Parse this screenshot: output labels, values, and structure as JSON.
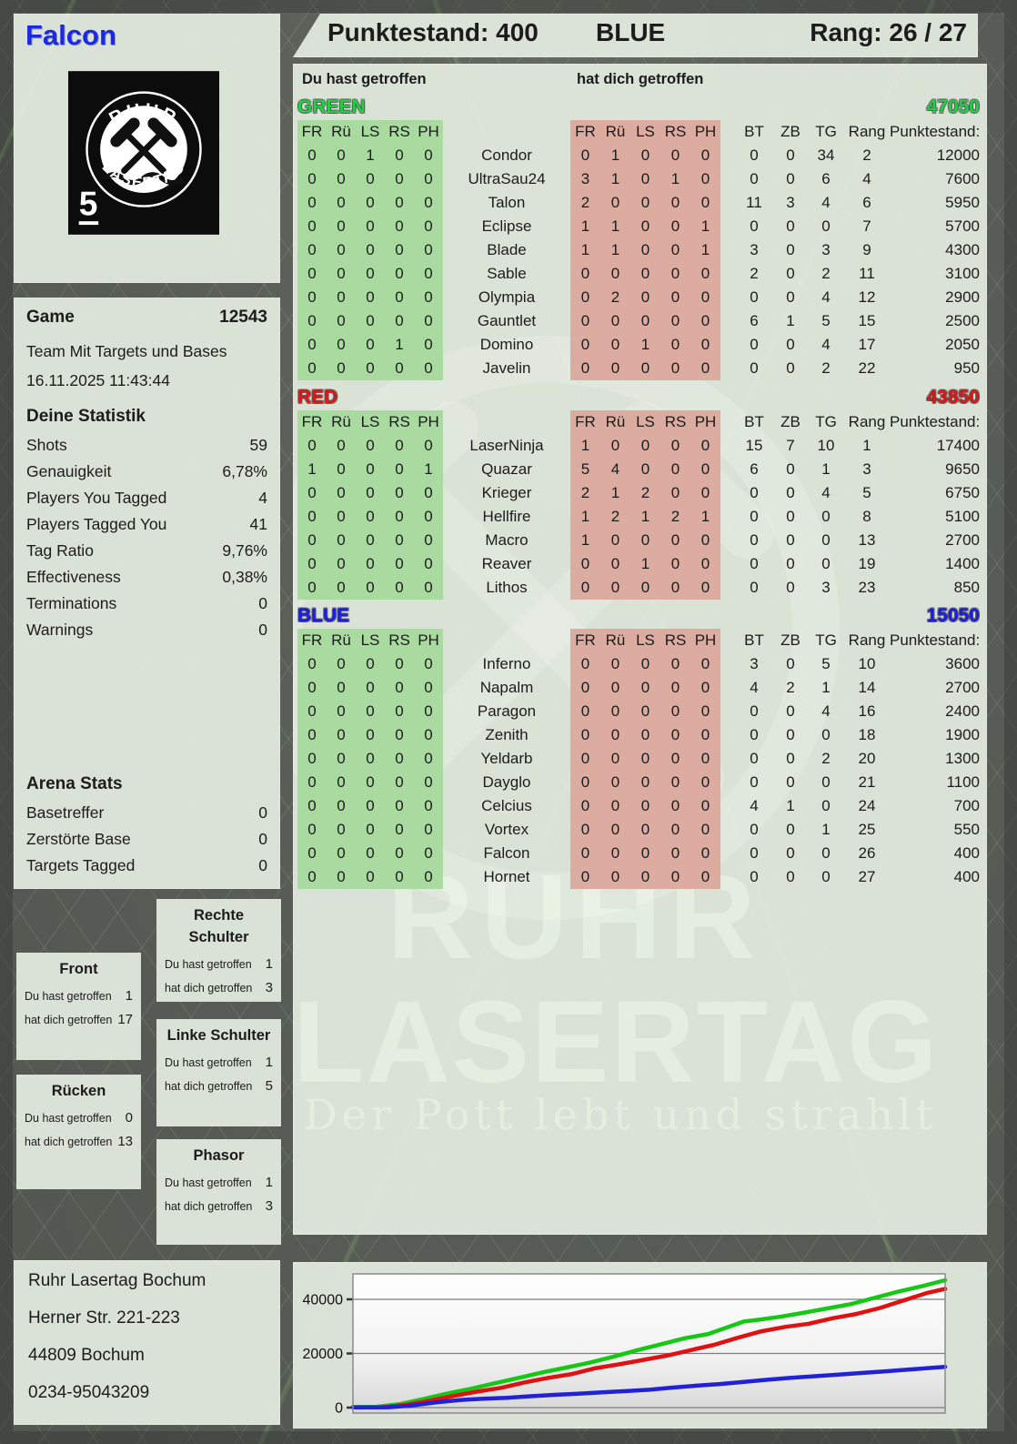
{
  "header": {
    "score_label": "Punktestand: 400",
    "team": "BLUE",
    "rank_label": "Rang: 26 / 27"
  },
  "player": {
    "name": "Falcon"
  },
  "logo": {
    "arc_top": "RUHR",
    "arc_bottom": "LASERTAG",
    "badge": "5"
  },
  "game": {
    "label": "Game",
    "id": "12543",
    "mode": "Team Mit Targets und Bases",
    "datetime": "16.11.2025 11:43:44"
  },
  "stats": {
    "title": "Deine Statistik",
    "rows": [
      {
        "label": "Shots",
        "value": "59"
      },
      {
        "label": "Genauigkeit",
        "value": "6,78%"
      },
      {
        "label": "Players You Tagged",
        "value": "4"
      },
      {
        "label": "Players Tagged You",
        "value": "41"
      },
      {
        "label": "Tag Ratio",
        "value": "9,76%"
      },
      {
        "label": "Effectiveness",
        "value": "0,38%"
      },
      {
        "label": "Terminations",
        "value": "0"
      },
      {
        "label": "Warnings",
        "value": "0"
      }
    ]
  },
  "arena": {
    "title": "Arena Stats",
    "rows": [
      {
        "label": "Basetreffer",
        "value": "0"
      },
      {
        "label": "Zerstörte Base",
        "value": "0"
      },
      {
        "label": "Targets Tagged",
        "value": "0"
      }
    ]
  },
  "hitboxes": {
    "rechte": {
      "title": "Rechte Schulter",
      "hit_label": "Du hast getroffen",
      "hit": "1",
      "got_label": "hat dich getroffen",
      "got": "3"
    },
    "front": {
      "title": "Front",
      "hit_label": "Du hast getroffen",
      "hit": "1",
      "got_label": "hat dich getroffen",
      "got": "17"
    },
    "linke": {
      "title": "Linke Schulter",
      "hit_label": "Du hast getroffen",
      "hit": "1",
      "got_label": "hat dich getroffen",
      "got": "5"
    },
    "ruecken": {
      "title": "Rücken",
      "hit_label": "Du hast getroffen",
      "hit": "0",
      "got_label": "hat dich getroffen",
      "got": "13"
    },
    "phasor": {
      "title": "Phasor",
      "hit_label": "Du hast getroffen",
      "hit": "1",
      "got_label": "hat dich getroffen",
      "got": "3"
    }
  },
  "columns": {
    "left_label": "Du hast getroffen",
    "right_label": "hat dich getroffen",
    "hit_cols": [
      "FR",
      "Rü",
      "LS",
      "RS",
      "PH"
    ],
    "stat_cols": [
      "BT",
      "ZB",
      "TG",
      "Rang",
      "Punktestand:"
    ]
  },
  "teams": [
    {
      "name": "GREEN",
      "color": "#1fd143",
      "total": "47050",
      "players": [
        {
          "name": "Condor",
          "you": [
            0,
            0,
            1,
            0,
            0
          ],
          "them": [
            0,
            1,
            0,
            0,
            0
          ],
          "bt": 0,
          "zb": 0,
          "tg": 34,
          "rang": 2,
          "score": "12000"
        },
        {
          "name": "UltraSau24",
          "you": [
            0,
            0,
            0,
            0,
            0
          ],
          "them": [
            3,
            1,
            0,
            1,
            0
          ],
          "bt": 0,
          "zb": 0,
          "tg": 6,
          "rang": 4,
          "score": "7600"
        },
        {
          "name": "Talon",
          "you": [
            0,
            0,
            0,
            0,
            0
          ],
          "them": [
            2,
            0,
            0,
            0,
            0
          ],
          "bt": 11,
          "zb": 3,
          "tg": 4,
          "rang": 6,
          "score": "5950"
        },
        {
          "name": "Eclipse",
          "you": [
            0,
            0,
            0,
            0,
            0
          ],
          "them": [
            1,
            1,
            0,
            0,
            1
          ],
          "bt": 0,
          "zb": 0,
          "tg": 0,
          "rang": 7,
          "score": "5700"
        },
        {
          "name": "Blade",
          "you": [
            0,
            0,
            0,
            0,
            0
          ],
          "them": [
            1,
            1,
            0,
            0,
            1
          ],
          "bt": 3,
          "zb": 0,
          "tg": 3,
          "rang": 9,
          "score": "4300"
        },
        {
          "name": "Sable",
          "you": [
            0,
            0,
            0,
            0,
            0
          ],
          "them": [
            0,
            0,
            0,
            0,
            0
          ],
          "bt": 2,
          "zb": 0,
          "tg": 2,
          "rang": 11,
          "score": "3100"
        },
        {
          "name": "Olympia",
          "you": [
            0,
            0,
            0,
            0,
            0
          ],
          "them": [
            0,
            2,
            0,
            0,
            0
          ],
          "bt": 0,
          "zb": 0,
          "tg": 4,
          "rang": 12,
          "score": "2900"
        },
        {
          "name": "Gauntlet",
          "you": [
            0,
            0,
            0,
            0,
            0
          ],
          "them": [
            0,
            0,
            0,
            0,
            0
          ],
          "bt": 6,
          "zb": 1,
          "tg": 5,
          "rang": 15,
          "score": "2500"
        },
        {
          "name": "Domino",
          "you": [
            0,
            0,
            0,
            1,
            0
          ],
          "them": [
            0,
            0,
            1,
            0,
            0
          ],
          "bt": 0,
          "zb": 0,
          "tg": 4,
          "rang": 17,
          "score": "2050"
        },
        {
          "name": "Javelin",
          "you": [
            0,
            0,
            0,
            0,
            0
          ],
          "them": [
            0,
            0,
            0,
            0,
            0
          ],
          "bt": 0,
          "zb": 0,
          "tg": 2,
          "rang": 22,
          "score": "950"
        }
      ]
    },
    {
      "name": "RED",
      "color": "#e01616",
      "total": "43850",
      "players": [
        {
          "name": "LaserNinja",
          "you": [
            0,
            0,
            0,
            0,
            0
          ],
          "them": [
            1,
            0,
            0,
            0,
            0
          ],
          "bt": 15,
          "zb": 7,
          "tg": 10,
          "rang": 1,
          "score": "17400"
        },
        {
          "name": "Quazar",
          "you": [
            1,
            0,
            0,
            0,
            1
          ],
          "them": [
            5,
            4,
            0,
            0,
            0
          ],
          "bt": 6,
          "zb": 0,
          "tg": 1,
          "rang": 3,
          "score": "9650"
        },
        {
          "name": "Krieger",
          "you": [
            0,
            0,
            0,
            0,
            0
          ],
          "them": [
            2,
            1,
            2,
            0,
            0
          ],
          "bt": 0,
          "zb": 0,
          "tg": 4,
          "rang": 5,
          "score": "6750"
        },
        {
          "name": "Hellfire",
          "you": [
            0,
            0,
            0,
            0,
            0
          ],
          "them": [
            1,
            2,
            1,
            2,
            1
          ],
          "bt": 0,
          "zb": 0,
          "tg": 0,
          "rang": 8,
          "score": "5100"
        },
        {
          "name": "Macro",
          "you": [
            0,
            0,
            0,
            0,
            0
          ],
          "them": [
            1,
            0,
            0,
            0,
            0
          ],
          "bt": 0,
          "zb": 0,
          "tg": 0,
          "rang": 13,
          "score": "2700"
        },
        {
          "name": "Reaver",
          "you": [
            0,
            0,
            0,
            0,
            0
          ],
          "them": [
            0,
            0,
            1,
            0,
            0
          ],
          "bt": 0,
          "zb": 0,
          "tg": 0,
          "rang": 19,
          "score": "1400"
        },
        {
          "name": "Lithos",
          "you": [
            0,
            0,
            0,
            0,
            0
          ],
          "them": [
            0,
            0,
            0,
            0,
            0
          ],
          "bt": 0,
          "zb": 0,
          "tg": 3,
          "rang": 23,
          "score": "850"
        }
      ]
    },
    {
      "name": "BLUE",
      "color": "#1c1ce8",
      "total": "15050",
      "players": [
        {
          "name": "Inferno",
          "you": [
            0,
            0,
            0,
            0,
            0
          ],
          "them": [
            0,
            0,
            0,
            0,
            0
          ],
          "bt": 3,
          "zb": 0,
          "tg": 5,
          "rang": 10,
          "score": "3600"
        },
        {
          "name": "Napalm",
          "you": [
            0,
            0,
            0,
            0,
            0
          ],
          "them": [
            0,
            0,
            0,
            0,
            0
          ],
          "bt": 4,
          "zb": 2,
          "tg": 1,
          "rang": 14,
          "score": "2700"
        },
        {
          "name": "Paragon",
          "you": [
            0,
            0,
            0,
            0,
            0
          ],
          "them": [
            0,
            0,
            0,
            0,
            0
          ],
          "bt": 0,
          "zb": 0,
          "tg": 4,
          "rang": 16,
          "score": "2400"
        },
        {
          "name": "Zenith",
          "you": [
            0,
            0,
            0,
            0,
            0
          ],
          "them": [
            0,
            0,
            0,
            0,
            0
          ],
          "bt": 0,
          "zb": 0,
          "tg": 0,
          "rang": 18,
          "score": "1900"
        },
        {
          "name": "Yeldarb",
          "you": [
            0,
            0,
            0,
            0,
            0
          ],
          "them": [
            0,
            0,
            0,
            0,
            0
          ],
          "bt": 0,
          "zb": 0,
          "tg": 2,
          "rang": 20,
          "score": "1300"
        },
        {
          "name": "Dayglo",
          "you": [
            0,
            0,
            0,
            0,
            0
          ],
          "them": [
            0,
            0,
            0,
            0,
            0
          ],
          "bt": 0,
          "zb": 0,
          "tg": 0,
          "rang": 21,
          "score": "1100"
        },
        {
          "name": "Celcius",
          "you": [
            0,
            0,
            0,
            0,
            0
          ],
          "them": [
            0,
            0,
            0,
            0,
            0
          ],
          "bt": 4,
          "zb": 1,
          "tg": 0,
          "rang": 24,
          "score": "700"
        },
        {
          "name": "Vortex",
          "you": [
            0,
            0,
            0,
            0,
            0
          ],
          "them": [
            0,
            0,
            0,
            0,
            0
          ],
          "bt": 0,
          "zb": 0,
          "tg": 1,
          "rang": 25,
          "score": "550"
        },
        {
          "name": "Falcon",
          "you": [
            0,
            0,
            0,
            0,
            0
          ],
          "them": [
            0,
            0,
            0,
            0,
            0
          ],
          "bt": 0,
          "zb": 0,
          "tg": 0,
          "rang": 26,
          "score": "400"
        },
        {
          "name": "Hornet",
          "you": [
            0,
            0,
            0,
            0,
            0
          ],
          "them": [
            0,
            0,
            0,
            0,
            0
          ],
          "bt": 0,
          "zb": 0,
          "tg": 0,
          "rang": 27,
          "score": "400"
        }
      ]
    }
  ],
  "watermark": {
    "line1": "RUHR",
    "line2": "LASERTAG",
    "tagline": "Der Pott lebt und strahlt"
  },
  "address": {
    "lines": [
      "Ruhr Lasertag Bochum",
      "Herner Str. 221-223",
      "44809 Bochum",
      "0234-95043209"
    ]
  },
  "chart_data": {
    "type": "line",
    "yticks": [
      0,
      20000,
      40000
    ],
    "ylim": [
      0,
      49000
    ],
    "x_range": [
      0,
      1
    ],
    "grid": true,
    "legend": "none",
    "series": [
      {
        "name": "GREEN",
        "color": "#16c716",
        "points": [
          [
            0,
            200
          ],
          [
            0.04,
            300
          ],
          [
            0.08,
            1300
          ],
          [
            0.12,
            3200
          ],
          [
            0.16,
            5200
          ],
          [
            0.2,
            7000
          ],
          [
            0.24,
            9000
          ],
          [
            0.28,
            11000
          ],
          [
            0.32,
            13000
          ],
          [
            0.36,
            14800
          ],
          [
            0.4,
            16600
          ],
          [
            0.44,
            18800
          ],
          [
            0.48,
            21200
          ],
          [
            0.52,
            23400
          ],
          [
            0.56,
            25600
          ],
          [
            0.6,
            27200
          ],
          [
            0.63,
            29500
          ],
          [
            0.66,
            31800
          ],
          [
            0.68,
            32300
          ],
          [
            0.72,
            33500
          ],
          [
            0.76,
            35000
          ],
          [
            0.8,
            36600
          ],
          [
            0.84,
            38200
          ],
          [
            0.88,
            40500
          ],
          [
            0.92,
            42800
          ],
          [
            0.96,
            44800
          ],
          [
            1,
            47050
          ]
        ]
      },
      {
        "name": "RED",
        "color": "#df1212",
        "points": [
          [
            0,
            100
          ],
          [
            0.05,
            150
          ],
          [
            0.09,
            1000
          ],
          [
            0.13,
            2600
          ],
          [
            0.17,
            4300
          ],
          [
            0.21,
            5900
          ],
          [
            0.25,
            7300
          ],
          [
            0.29,
            9300
          ],
          [
            0.33,
            11000
          ],
          [
            0.37,
            12400
          ],
          [
            0.41,
            14600
          ],
          [
            0.45,
            16000
          ],
          [
            0.49,
            17600
          ],
          [
            0.53,
            19200
          ],
          [
            0.57,
            21200
          ],
          [
            0.61,
            23200
          ],
          [
            0.65,
            25800
          ],
          [
            0.69,
            28200
          ],
          [
            0.73,
            29800
          ],
          [
            0.77,
            31000
          ],
          [
            0.81,
            33000
          ],
          [
            0.85,
            34600
          ],
          [
            0.89,
            36800
          ],
          [
            0.93,
            39600
          ],
          [
            0.97,
            42400
          ],
          [
            1,
            43850
          ]
        ]
      },
      {
        "name": "BLUE",
        "color": "#2121d6",
        "points": [
          [
            0,
            100
          ],
          [
            0.06,
            150
          ],
          [
            0.1,
            800
          ],
          [
            0.14,
            1900
          ],
          [
            0.18,
            2800
          ],
          [
            0.22,
            3300
          ],
          [
            0.26,
            3600
          ],
          [
            0.3,
            4200
          ],
          [
            0.34,
            4700
          ],
          [
            0.38,
            5100
          ],
          [
            0.42,
            5600
          ],
          [
            0.46,
            6100
          ],
          [
            0.5,
            6600
          ],
          [
            0.54,
            7400
          ],
          [
            0.58,
            8100
          ],
          [
            0.62,
            8700
          ],
          [
            0.66,
            9500
          ],
          [
            0.7,
            10300
          ],
          [
            0.74,
            11000
          ],
          [
            0.78,
            11600
          ],
          [
            0.82,
            12200
          ],
          [
            0.86,
            12800
          ],
          [
            0.9,
            13400
          ],
          [
            0.94,
            14100
          ],
          [
            1,
            15050
          ]
        ]
      }
    ]
  }
}
